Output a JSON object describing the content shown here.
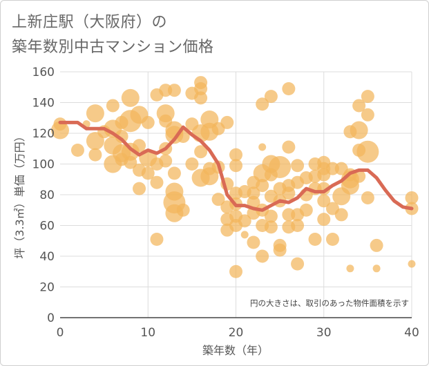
{
  "title_line1": "上新庄駅（大阪府）の",
  "title_line2": "築年数別中古マンション価格",
  "chart_data": {
    "type": "scatter",
    "title": "上新庄駅（大阪府）の築年数別中古マンション価格",
    "xlabel": "築年数（年）",
    "ylabel": "坪（3.3㎡）単価（万円）",
    "xlim": [
      0,
      40
    ],
    "ylim": [
      0,
      160
    ],
    "xticks": [
      0,
      10,
      20,
      30,
      40
    ],
    "yticks": [
      0,
      20,
      40,
      60,
      80,
      100,
      120,
      140,
      160
    ],
    "grid": true,
    "note": "円の大きさは、取引のあった物件面積を示す",
    "colors": {
      "bubble": "#f3b55b",
      "line": "#d96a55"
    },
    "points": [
      {
        "x": 0,
        "y": 122,
        "s": 3
      },
      {
        "x": 0,
        "y": 126,
        "s": 2
      },
      {
        "x": 2,
        "y": 109,
        "s": 2
      },
      {
        "x": 3,
        "y": 126,
        "s": 1
      },
      {
        "x": 4,
        "y": 133,
        "s": 3
      },
      {
        "x": 4,
        "y": 115,
        "s": 3
      },
      {
        "x": 4,
        "y": 106,
        "s": 2
      },
      {
        "x": 5,
        "y": 121,
        "s": 2
      },
      {
        "x": 6,
        "y": 138,
        "s": 2
      },
      {
        "x": 6,
        "y": 123,
        "s": 3
      },
      {
        "x": 6,
        "y": 112,
        "s": 3
      },
      {
        "x": 6,
        "y": 100,
        "s": 3
      },
      {
        "x": 7,
        "y": 107,
        "s": 3
      },
      {
        "x": 7,
        "y": 127,
        "s": 2
      },
      {
        "x": 7,
        "y": 103,
        "s": 2
      },
      {
        "x": 7,
        "y": 118,
        "s": 2
      },
      {
        "x": 8,
        "y": 143,
        "s": 3
      },
      {
        "x": 8,
        "y": 128,
        "s": 4
      },
      {
        "x": 8,
        "y": 108,
        "s": 3
      },
      {
        "x": 8,
        "y": 101,
        "s": 2
      },
      {
        "x": 9,
        "y": 132,
        "s": 3
      },
      {
        "x": 9,
        "y": 112,
        "s": 2
      },
      {
        "x": 9,
        "y": 96,
        "s": 2
      },
      {
        "x": 9,
        "y": 84,
        "s": 2
      },
      {
        "x": 10,
        "y": 127,
        "s": 2
      },
      {
        "x": 10,
        "y": 104,
        "s": 3
      },
      {
        "x": 10,
        "y": 94,
        "s": 2
      },
      {
        "x": 11,
        "y": 145,
        "s": 2
      },
      {
        "x": 11,
        "y": 100,
        "s": 2
      },
      {
        "x": 11,
        "y": 88,
        "s": 2
      },
      {
        "x": 11,
        "y": 51,
        "s": 2
      },
      {
        "x": 12,
        "y": 148,
        "s": 2
      },
      {
        "x": 12,
        "y": 133,
        "s": 3
      },
      {
        "x": 12,
        "y": 128,
        "s": 2
      },
      {
        "x": 12,
        "y": 110,
        "s": 2
      },
      {
        "x": 12,
        "y": 102,
        "s": 2
      },
      {
        "x": 13,
        "y": 148,
        "s": 2
      },
      {
        "x": 13,
        "y": 122,
        "s": 3
      },
      {
        "x": 13,
        "y": 119,
        "s": 3
      },
      {
        "x": 13,
        "y": 94,
        "s": 2
      },
      {
        "x": 13,
        "y": 82,
        "s": 3
      },
      {
        "x": 13,
        "y": 75,
        "s": 4
      },
      {
        "x": 13,
        "y": 68,
        "s": 3
      },
      {
        "x": 14,
        "y": 118,
        "s": 2
      },
      {
        "x": 14,
        "y": 70,
        "s": 2
      },
      {
        "x": 15,
        "y": 146,
        "s": 2
      },
      {
        "x": 15,
        "y": 126,
        "s": 2
      },
      {
        "x": 15,
        "y": 100,
        "s": 2
      },
      {
        "x": 16,
        "y": 153,
        "s": 2
      },
      {
        "x": 16,
        "y": 149,
        "s": 2
      },
      {
        "x": 16,
        "y": 143,
        "s": 2
      },
      {
        "x": 16,
        "y": 120,
        "s": 3
      },
      {
        "x": 16,
        "y": 108,
        "s": 2
      },
      {
        "x": 16,
        "y": 91,
        "s": 3
      },
      {
        "x": 17,
        "y": 129,
        "s": 3
      },
      {
        "x": 17,
        "y": 121,
        "s": 3
      },
      {
        "x": 17,
        "y": 97,
        "s": 2
      },
      {
        "x": 17,
        "y": 92,
        "s": 3
      },
      {
        "x": 18,
        "y": 123,
        "s": 2
      },
      {
        "x": 18,
        "y": 98,
        "s": 2
      },
      {
        "x": 18,
        "y": 77,
        "s": 2
      },
      {
        "x": 19,
        "y": 127,
        "s": 2
      },
      {
        "x": 19,
        "y": 87,
        "s": 2
      },
      {
        "x": 19,
        "y": 72,
        "s": 2
      },
      {
        "x": 19,
        "y": 64,
        "s": 2
      },
      {
        "x": 19,
        "y": 57,
        "s": 2
      },
      {
        "x": 20,
        "y": 106,
        "s": 2
      },
      {
        "x": 20,
        "y": 99,
        "s": 2
      },
      {
        "x": 20,
        "y": 81,
        "s": 2
      },
      {
        "x": 20,
        "y": 74,
        "s": 2
      },
      {
        "x": 20,
        "y": 66,
        "s": 2
      },
      {
        "x": 20,
        "y": 60,
        "s": 2
      },
      {
        "x": 20,
        "y": 30,
        "s": 2
      },
      {
        "x": 21,
        "y": 82,
        "s": 2
      },
      {
        "x": 21,
        "y": 63,
        "s": 2
      },
      {
        "x": 21,
        "y": 54,
        "s": 1
      },
      {
        "x": 22,
        "y": 88,
        "s": 2
      },
      {
        "x": 22,
        "y": 81,
        "s": 2
      },
      {
        "x": 22,
        "y": 75,
        "s": 2
      },
      {
        "x": 22,
        "y": 68,
        "s": 2
      },
      {
        "x": 22,
        "y": 49,
        "s": 2
      },
      {
        "x": 23,
        "y": 139,
        "s": 2
      },
      {
        "x": 23,
        "y": 111,
        "s": 1
      },
      {
        "x": 23,
        "y": 94,
        "s": 3
      },
      {
        "x": 23,
        "y": 86,
        "s": 2
      },
      {
        "x": 23,
        "y": 70,
        "s": 2
      },
      {
        "x": 23,
        "y": 60,
        "s": 2
      },
      {
        "x": 23,
        "y": 40,
        "s": 2
      },
      {
        "x": 24,
        "y": 144,
        "s": 2
      },
      {
        "x": 24,
        "y": 100,
        "s": 3
      },
      {
        "x": 24,
        "y": 93,
        "s": 2
      },
      {
        "x": 24,
        "y": 79,
        "s": 2
      },
      {
        "x": 24,
        "y": 66,
        "s": 2
      },
      {
        "x": 24,
        "y": 59,
        "s": 2
      },
      {
        "x": 25,
        "y": 98,
        "s": 4
      },
      {
        "x": 25,
        "y": 84,
        "s": 2
      },
      {
        "x": 25,
        "y": 76,
        "s": 2
      },
      {
        "x": 25,
        "y": 47,
        "s": 2
      },
      {
        "x": 25,
        "y": 44,
        "s": 2
      },
      {
        "x": 26,
        "y": 149,
        "s": 2
      },
      {
        "x": 26,
        "y": 111,
        "s": 2
      },
      {
        "x": 26,
        "y": 86,
        "s": 2
      },
      {
        "x": 26,
        "y": 81,
        "s": 2
      },
      {
        "x": 26,
        "y": 67,
        "s": 2
      },
      {
        "x": 26,
        "y": 59,
        "s": 2
      },
      {
        "x": 27,
        "y": 99,
        "s": 2
      },
      {
        "x": 27,
        "y": 88,
        "s": 2
      },
      {
        "x": 27,
        "y": 67,
        "s": 2
      },
      {
        "x": 27,
        "y": 60,
        "s": 2
      },
      {
        "x": 27,
        "y": 35,
        "s": 2
      },
      {
        "x": 28,
        "y": 91,
        "s": 2
      },
      {
        "x": 28,
        "y": 80,
        "s": 2
      },
      {
        "x": 28,
        "y": 70,
        "s": 2
      },
      {
        "x": 29,
        "y": 100,
        "s": 2
      },
      {
        "x": 29,
        "y": 92,
        "s": 2
      },
      {
        "x": 29,
        "y": 84,
        "s": 2
      },
      {
        "x": 29,
        "y": 51,
        "s": 2
      },
      {
        "x": 30,
        "y": 101,
        "s": 2
      },
      {
        "x": 30,
        "y": 97,
        "s": 2
      },
      {
        "x": 30,
        "y": 93,
        "s": 2
      },
      {
        "x": 30,
        "y": 84,
        "s": 2
      },
      {
        "x": 30,
        "y": 76,
        "s": 2
      },
      {
        "x": 30,
        "y": 64,
        "s": 2
      },
      {
        "x": 31,
        "y": 97,
        "s": 2
      },
      {
        "x": 31,
        "y": 71,
        "s": 2
      },
      {
        "x": 31,
        "y": 51,
        "s": 2
      },
      {
        "x": 32,
        "y": 97,
        "s": 2
      },
      {
        "x": 32,
        "y": 79,
        "s": 3
      },
      {
        "x": 32,
        "y": 67,
        "s": 2
      },
      {
        "x": 33,
        "y": 121,
        "s": 2
      },
      {
        "x": 33,
        "y": 93,
        "s": 2
      },
      {
        "x": 33,
        "y": 90,
        "s": 3
      },
      {
        "x": 33,
        "y": 86,
        "s": 3
      },
      {
        "x": 33,
        "y": 32,
        "s": 1
      },
      {
        "x": 34,
        "y": 138,
        "s": 2
      },
      {
        "x": 34,
        "y": 122,
        "s": 3
      },
      {
        "x": 34,
        "y": 109,
        "s": 2
      },
      {
        "x": 34,
        "y": 92,
        "s": 2
      },
      {
        "x": 35,
        "y": 144,
        "s": 2
      },
      {
        "x": 35,
        "y": 132,
        "s": 2
      },
      {
        "x": 35,
        "y": 108,
        "s": 4
      },
      {
        "x": 35,
        "y": 78,
        "s": 2
      },
      {
        "x": 36,
        "y": 47,
        "s": 2
      },
      {
        "x": 36,
        "y": 32,
        "s": 1
      },
      {
        "x": 40,
        "y": 78,
        "s": 2
      },
      {
        "x": 40,
        "y": 71,
        "s": 2
      },
      {
        "x": 40,
        "y": 35,
        "s": 1
      }
    ],
    "series": [
      {
        "x": [
          0,
          1,
          2,
          3,
          4,
          5,
          6,
          7,
          8,
          9,
          10,
          11,
          12,
          13,
          14,
          15,
          16,
          17,
          18,
          19,
          20,
          21,
          22,
          23,
          24,
          25,
          26,
          27,
          28,
          29,
          30,
          31,
          32,
          33,
          34,
          35,
          36,
          37,
          38,
          39,
          40
        ],
        "values": [
          127,
          127,
          127,
          123,
          123,
          123,
          120,
          116,
          110,
          106,
          109,
          107,
          110,
          116,
          124,
          119,
          115,
          109,
          100,
          80,
          73,
          73,
          71,
          70,
          73,
          76,
          75,
          78,
          84,
          82,
          82,
          86,
          89,
          94,
          96,
          96,
          91,
          83,
          76,
          72,
          71
        ]
      }
    ]
  }
}
